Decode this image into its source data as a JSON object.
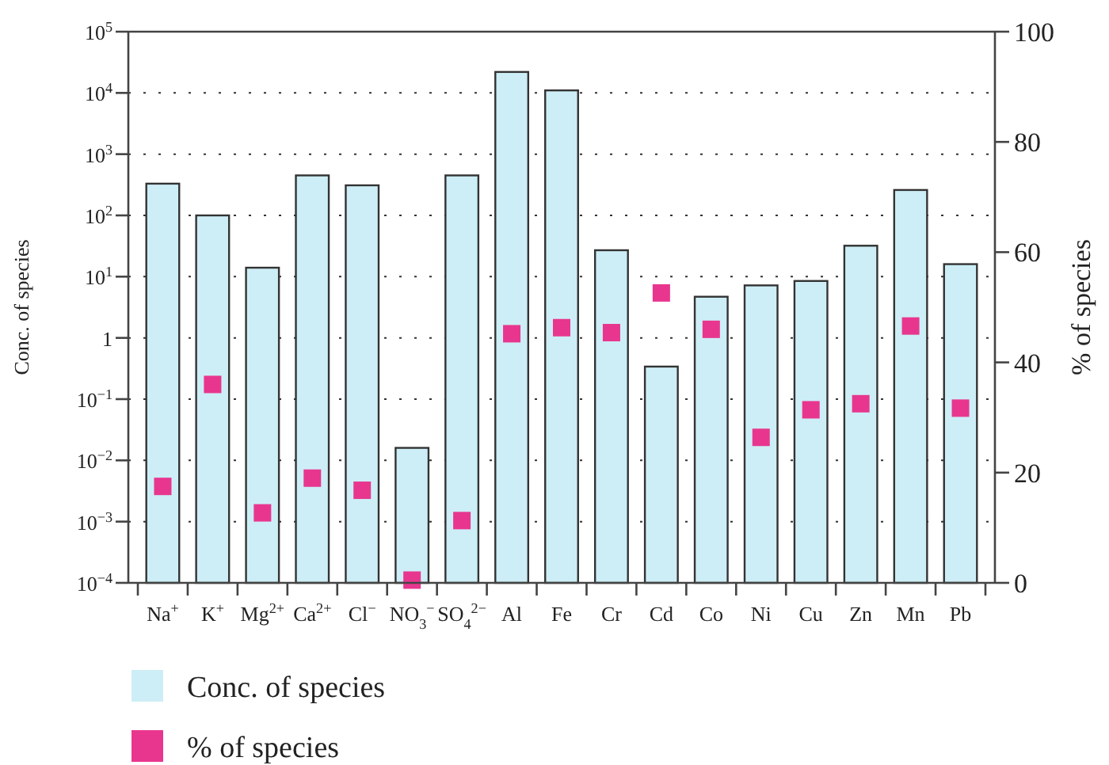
{
  "chart_data": {
    "type": "bar",
    "categories": [
      "Na$^{+}$",
      "K$^{+}$",
      "Mg$^{2+}$",
      "Ca$^{2+}$",
      "Cl$^{−}$",
      "NO$_{3}$$^{−}$",
      "SO$_{4}$$^{2−}$",
      "Al",
      "Fe",
      "Cr",
      "Cd",
      "Co",
      "Ni",
      "Cu",
      "Zn",
      "Mn",
      "Pb"
    ],
    "series": [
      {
        "name": "Conc. of species",
        "color": "#cdeef6",
        "values": [
          330,
          100,
          14,
          450,
          310,
          0.016,
          450,
          22000,
          11000,
          27,
          0.34,
          4.7,
          7.2,
          8.5,
          32,
          260,
          16
        ]
      },
      {
        "name": "% of species",
        "type": "scatter",
        "axis": "y2",
        "marker": "square",
        "color": "#e8368f",
        "values": [
          17.5,
          36,
          12.7,
          19,
          16.8,
          0.5,
          11.3,
          45.2,
          46.3,
          45.4,
          52.6,
          46,
          26.4,
          31.4,
          32.5,
          46.6,
          31.7
        ]
      }
    ],
    "ylabel": "Conc. of species",
    "y2label": "% of species",
    "log": "y",
    "ylim": [
      0.0001,
      100000
    ],
    "yticks": [
      {
        "value": 0.0001,
        "label": "10$^{−4}$"
      },
      {
        "value": 0.001,
        "label": "10$^{−3}$"
      },
      {
        "value": 0.01,
        "label": "10$^{−2}$"
      },
      {
        "value": 0.1,
        "label": "10$^{−1}$"
      },
      1,
      {
        "value": 10,
        "label": "10$^{1}$"
      },
      {
        "value": 100,
        "label": "10$^{2}$"
      },
      {
        "value": 1000,
        "label": "10$^{3}$"
      },
      {
        "value": 10000,
        "label": "10$^{4}$"
      },
      {
        "value": 100000,
        "label": "10$^{5}$"
      }
    ],
    "y2lim": [
      0,
      100
    ],
    "y2ticks": [
      0,
      20,
      40,
      60,
      80,
      100
    ],
    "grid": "y",
    "legend": "bottom left"
  }
}
